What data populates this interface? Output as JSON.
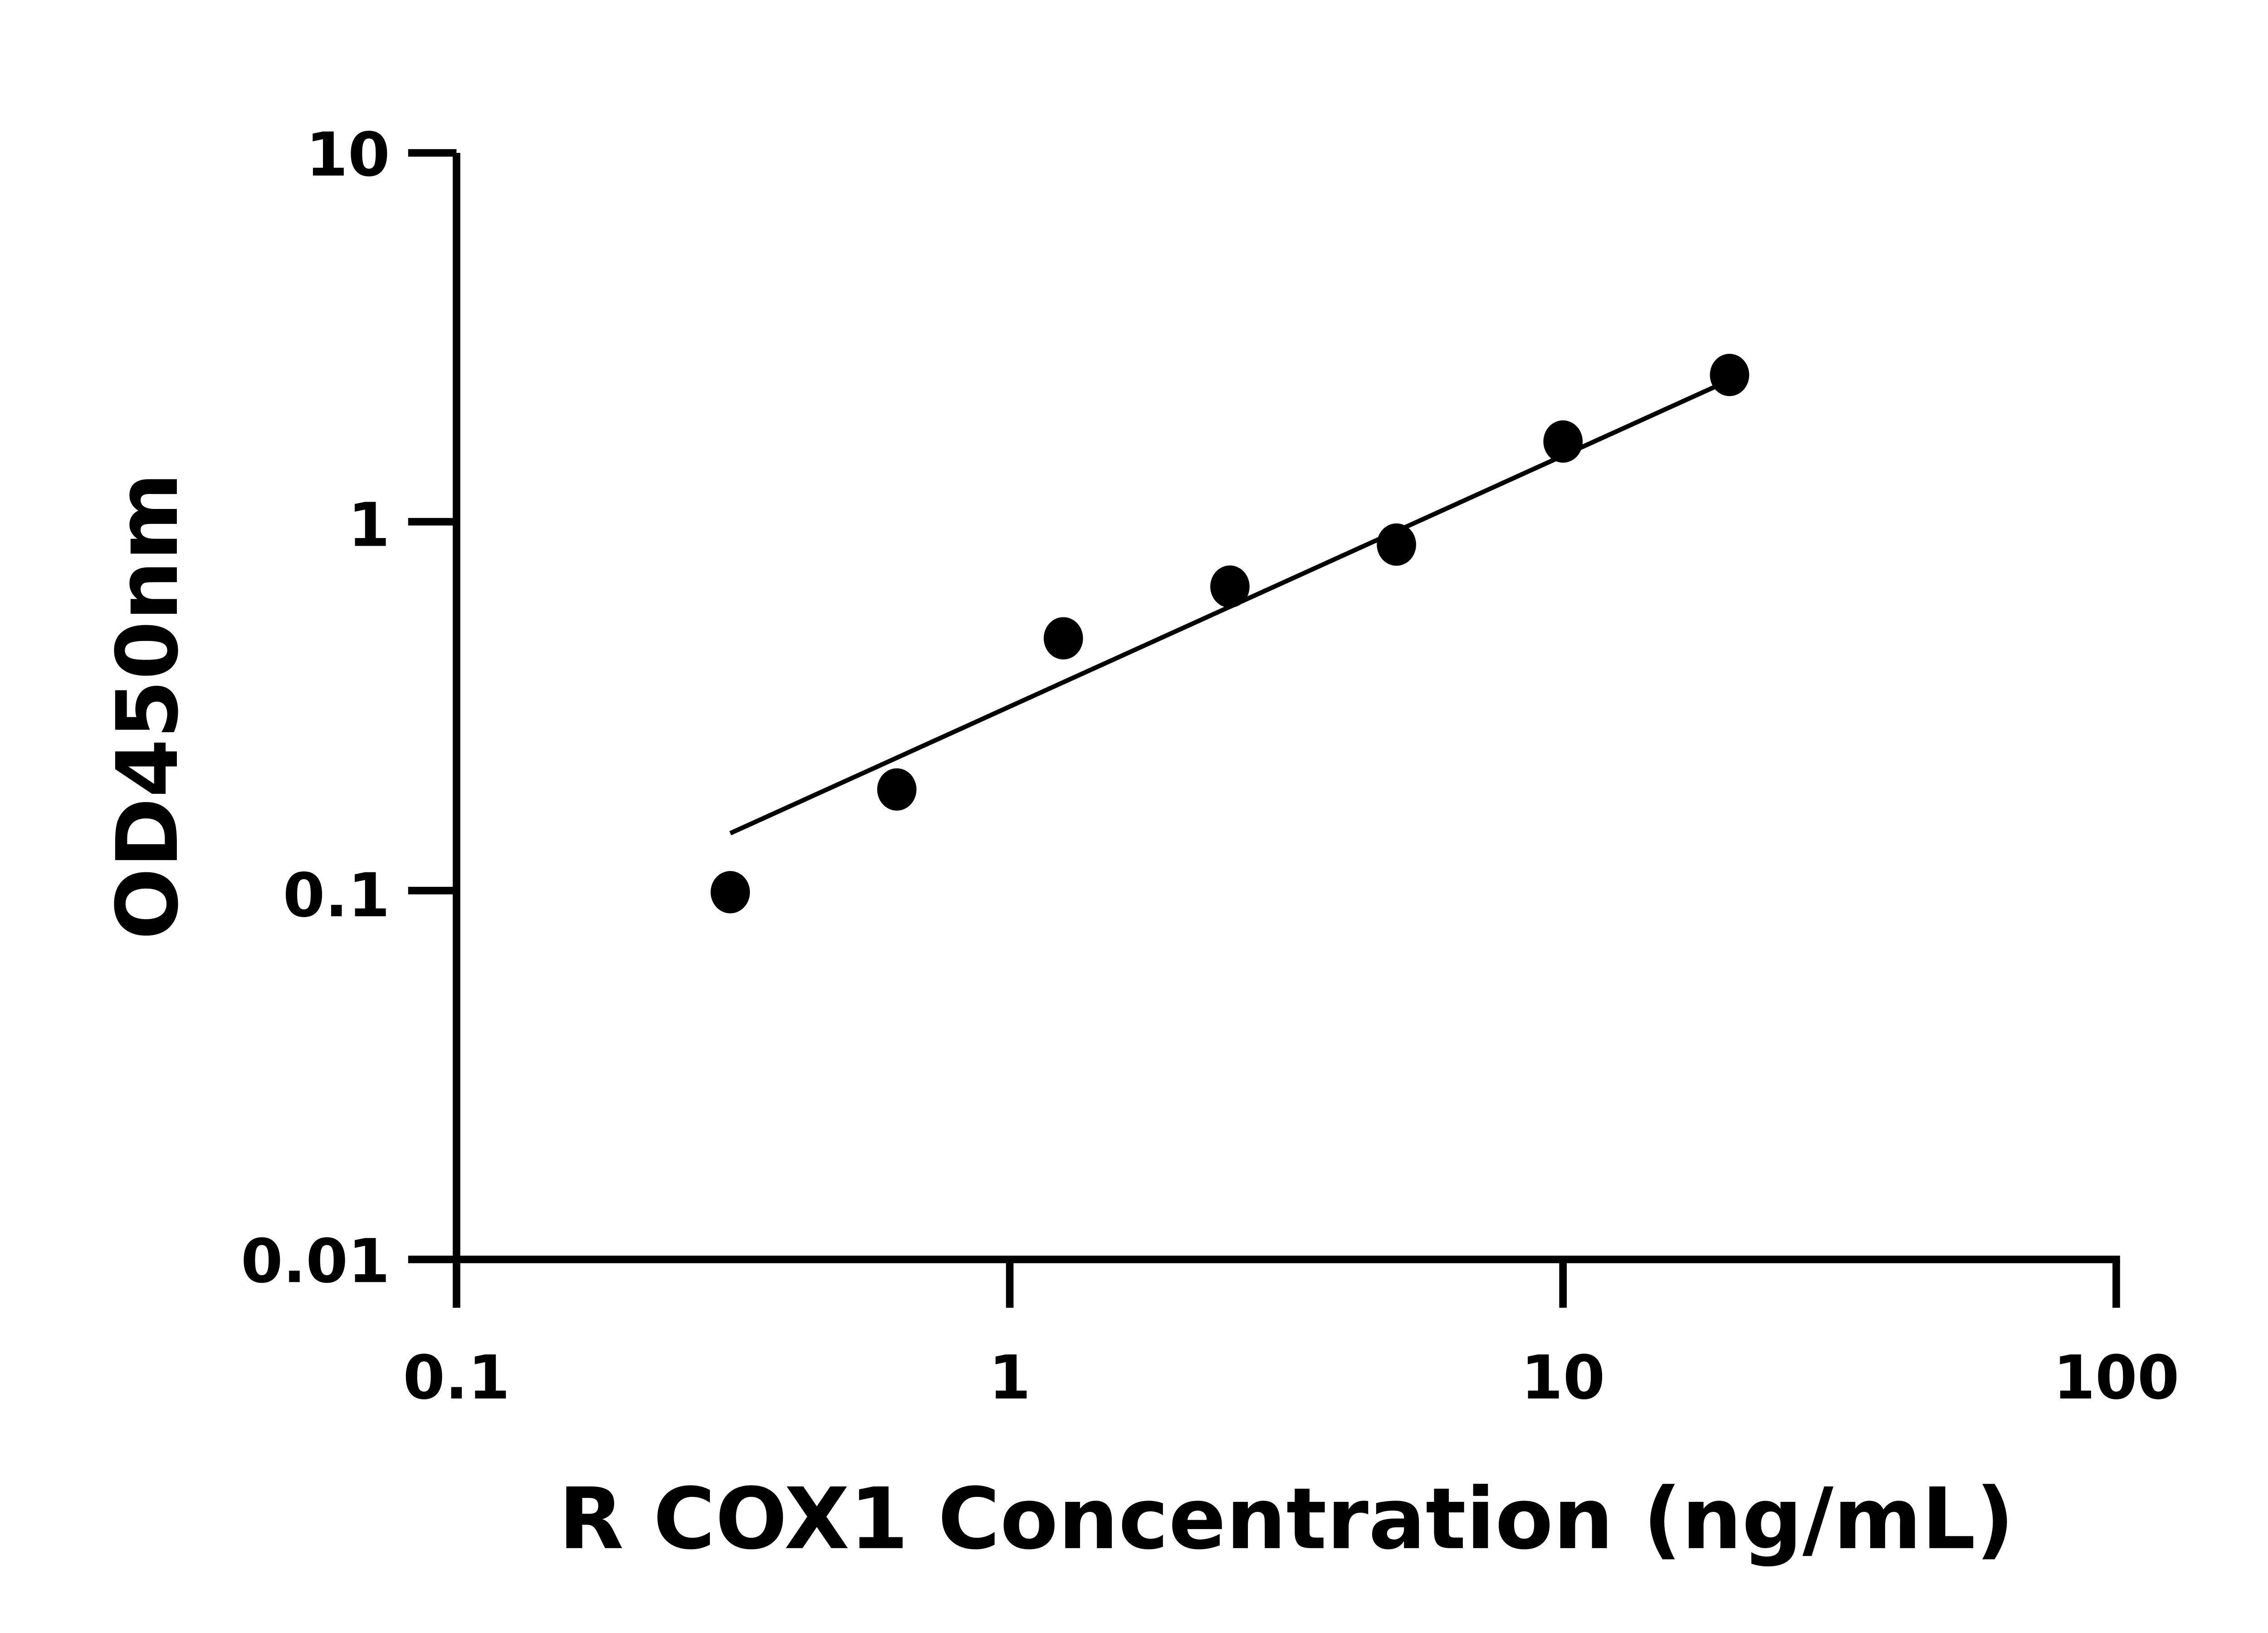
{
  "chart_data": {
    "type": "scatter",
    "title": "",
    "xlabel": "R COX1 Concentration (ng/mL)",
    "ylabel": "OD450nm",
    "x_scale": "log",
    "y_scale": "log",
    "xlim": [
      0.1,
      100
    ],
    "ylim": [
      0.01,
      10
    ],
    "x_ticks": [
      "0.1",
      "1",
      "10",
      "100"
    ],
    "y_ticks": [
      "0.01",
      "0.1",
      "1",
      "10"
    ],
    "grid": false,
    "legend": "none",
    "marker_color": "#000000",
    "points": {
      "x": [
        0.3125,
        0.625,
        1.25,
        2.5,
        5,
        10,
        20
      ],
      "y": [
        0.099,
        0.188,
        0.483,
        0.667,
        0.867,
        1.65,
        2.5
      ]
    },
    "fit_line": {
      "x": [
        0.3125,
        20
      ],
      "y": [
        0.143,
        2.42
      ]
    }
  }
}
